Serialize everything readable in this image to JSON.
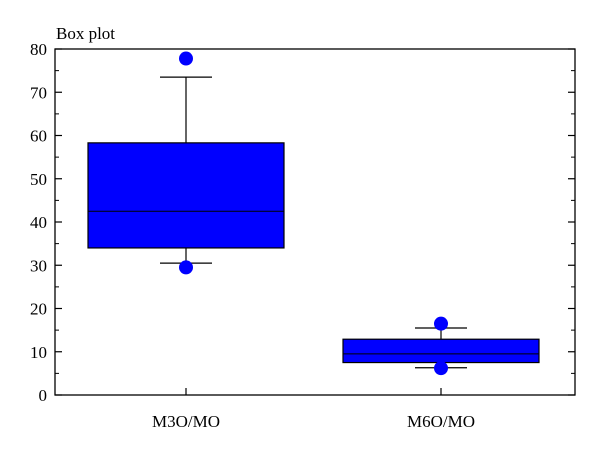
{
  "chart_data": {
    "type": "box",
    "title": "Box plot",
    "xlabel": "",
    "ylabel": "",
    "ylim": [
      0,
      80
    ],
    "yticks": [
      0,
      10,
      20,
      30,
      40,
      50,
      60,
      70,
      80
    ],
    "yminor_step": 5,
    "grid": false,
    "categories": [
      "M3O/MO",
      "M6O/MO"
    ],
    "boxes": [
      {
        "label": "M3O/MO",
        "whisker_low": 30.5,
        "q1": 34,
        "median": 42.5,
        "q3": 58.3,
        "whisker_high": 73.5,
        "outliers": [
          29.5,
          77.8
        ]
      },
      {
        "label": "M6O/MO",
        "whisker_low": 6.3,
        "q1": 7.5,
        "median": 9.5,
        "q3": 12.9,
        "whisker_high": 15.5,
        "outliers": [
          6.2,
          16.5
        ]
      }
    ],
    "box_color": "#0000ff",
    "outlier_color": "#0000ff",
    "line_color": "#000000"
  }
}
